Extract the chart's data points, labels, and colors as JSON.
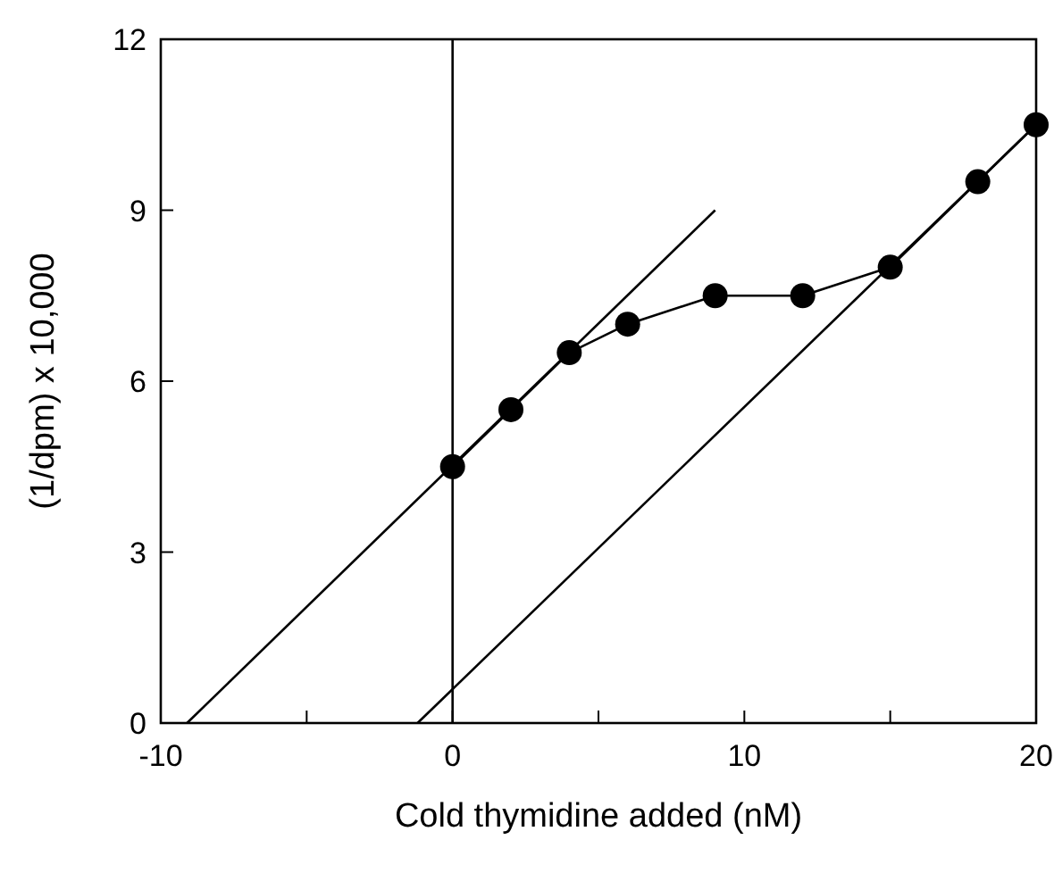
{
  "chart_data": {
    "type": "line",
    "xlabel": "Cold thymidine added (nM)",
    "ylabel": "(1/dpm) x 10,000",
    "xlim": [
      -10,
      20
    ],
    "ylim": [
      0,
      12
    ],
    "xticks": [
      -10,
      {
        "value": -5,
        "label": null
      },
      0,
      {
        "value": 5,
        "label": null
      },
      10,
      {
        "value": 15,
        "label": null
      },
      20
    ],
    "yticks": [
      0,
      3,
      6,
      9,
      12
    ],
    "grid": false,
    "ref_lines": [
      {
        "axis": "x",
        "value": 0,
        "color": "#000000"
      }
    ],
    "series": [
      {
        "color": "#000000",
        "marker": "circle",
        "x": [
          0,
          2,
          4,
          6,
          9,
          12,
          15,
          18,
          20
        ],
        "values": [
          4.5,
          5.5,
          6.5,
          7,
          7.5,
          7.5,
          8,
          9.5,
          10.5
        ]
      },
      {
        "color": "#000000",
        "marker": "none",
        "x": [
          -9.1,
          9
        ],
        "values": [
          0,
          9
        ]
      },
      {
        "color": "#000000",
        "marker": "none",
        "x": [
          -1.2,
          20
        ],
        "values": [
          0,
          10.5
        ]
      }
    ]
  }
}
